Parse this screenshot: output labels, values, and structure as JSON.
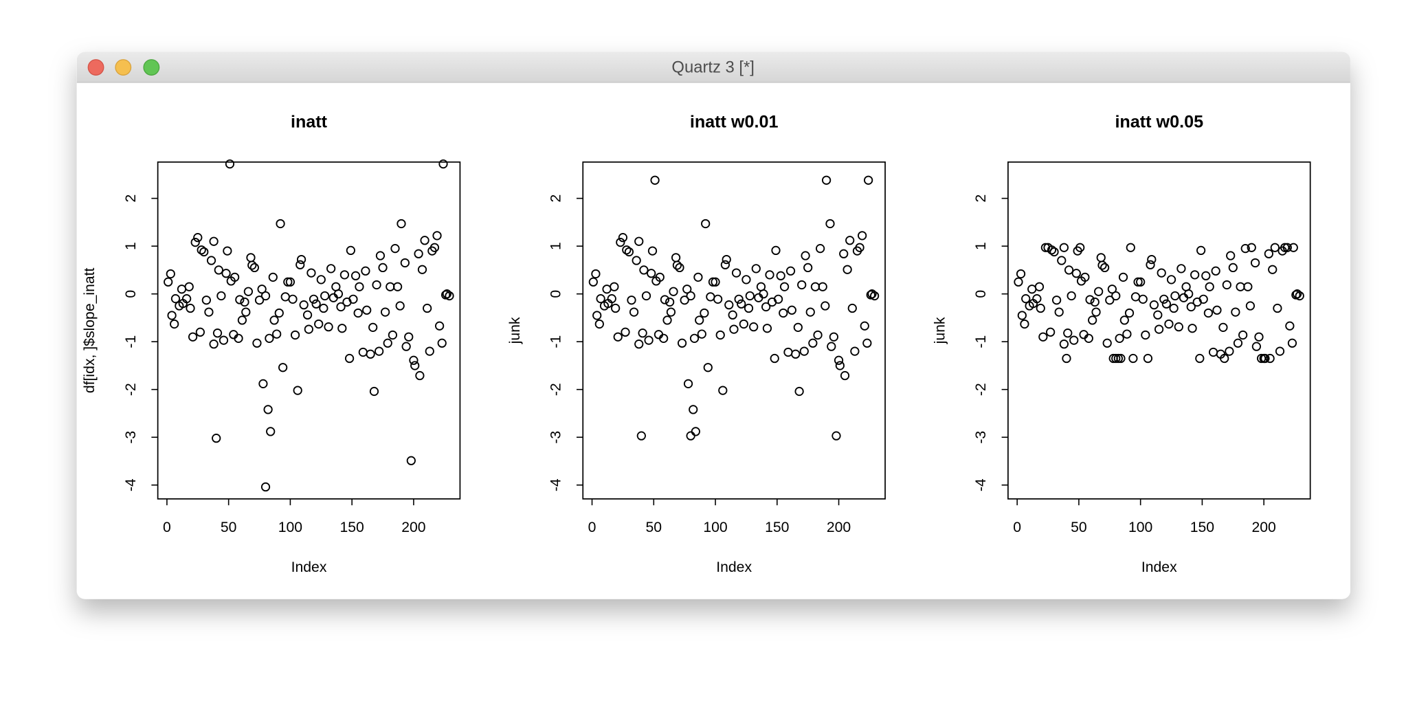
{
  "window": {
    "title": "Quartz 3 [*]"
  },
  "chart_data": [
    {
      "type": "scatter",
      "title": "inatt",
      "xlabel": "Index",
      "ylabel": "df[idx, ]$slope_inatt",
      "color": "#000000",
      "xlim": [
        -7.4,
        237.6
      ],
      "ylim": [
        -4.29,
        2.76
      ],
      "xticks": [
        0,
        50,
        100,
        150,
        200
      ],
      "yticks": [
        -4,
        -3,
        -2,
        -1,
        0,
        1,
        2
      ],
      "x": [
        1,
        3,
        4,
        6,
        7,
        10,
        12,
        13,
        16,
        18,
        19,
        21,
        23,
        25,
        27,
        28,
        30,
        32,
        34,
        36,
        38,
        38,
        40,
        41,
        42,
        44,
        46,
        48,
        49,
        51,
        52,
        54,
        55,
        58,
        59,
        61,
        63,
        64,
        66,
        68,
        69,
        71,
        73,
        75,
        77,
        78,
        80,
        80,
        82,
        83,
        84,
        86,
        87,
        89,
        91,
        92,
        94,
        96,
        98,
        100,
        102,
        104,
        106,
        108,
        109,
        111,
        114,
        115,
        117,
        119,
        121,
        123,
        125,
        127,
        128,
        131,
        133,
        135,
        137,
        139,
        141,
        142,
        144,
        146,
        148,
        149,
        151,
        153,
        155,
        156,
        159,
        161,
        162,
        165,
        167,
        168,
        170,
        172,
        173,
        175,
        177,
        179,
        181,
        183,
        185,
        187,
        189,
        190,
        193,
        194,
        196,
        198,
        200,
        201,
        204,
        205,
        207,
        209,
        211,
        213,
        215,
        217,
        219,
        221,
        223,
        224,
        226,
        227,
        229
      ],
      "values": [
        0.25,
        0.42,
        -0.45,
        -0.63,
        -0.1,
        -0.25,
        0.1,
        -0.2,
        -0.1,
        0.15,
        -0.3,
        -0.9,
        1.08,
        1.18,
        -0.8,
        0.92,
        0.88,
        -0.13,
        -0.38,
        0.7,
        1.1,
        -1.05,
        -3.02,
        -0.82,
        0.5,
        -0.04,
        -0.97,
        0.43,
        0.9,
        2.72,
        0.27,
        -0.85,
        0.35,
        -0.93,
        -0.12,
        -0.55,
        -0.17,
        -0.38,
        0.05,
        0.76,
        0.6,
        0.55,
        -1.03,
        -0.13,
        0.1,
        -1.88,
        -0.04,
        -4.04,
        -2.42,
        -0.93,
        -2.88,
        0.35,
        -0.55,
        -0.84,
        -0.4,
        1.47,
        -1.54,
        -0.06,
        0.25,
        0.25,
        -0.11,
        -0.86,
        -2.02,
        0.61,
        0.72,
        -0.23,
        -0.44,
        -0.74,
        0.44,
        -0.11,
        -0.21,
        -0.63,
        0.3,
        -0.3,
        -0.04,
        -0.69,
        0.53,
        -0.08,
        0.15,
        0,
        -0.27,
        -0.72,
        0.4,
        -0.17,
        -1.35,
        0.91,
        -0.11,
        0.38,
        -0.4,
        0.15,
        -1.22,
        0.48,
        -0.34,
        -1.26,
        -0.7,
        -2.04,
        0.19,
        -1.2,
        0.8,
        0.55,
        -0.38,
        -1.03,
        0.15,
        -0.86,
        0.95,
        0.15,
        -0.25,
        1.47,
        0.65,
        -1.1,
        -0.9,
        -3.49,
        -1.39,
        -1.5,
        0.84,
        -1.71,
        0.51,
        1.12,
        -0.3,
        -1.2,
        0.9,
        0.97,
        1.22,
        -0.67,
        -1.03,
        2.72,
        -0.02,
        0,
        -0.04
      ]
    },
    {
      "type": "scatter",
      "title": "inatt w0.01",
      "xlabel": "Index",
      "ylabel": "junk",
      "color": "#000000",
      "xlim": [
        -7.4,
        237.6
      ],
      "ylim": [
        -4.29,
        2.76
      ],
      "xticks": [
        0,
        50,
        100,
        150,
        200
      ],
      "yticks": [
        -4,
        -3,
        -2,
        -1,
        0,
        1,
        2
      ],
      "x": [
        1,
        3,
        4,
        6,
        7,
        10,
        12,
        13,
        16,
        18,
        19,
        21,
        23,
        25,
        27,
        28,
        30,
        32,
        34,
        36,
        38,
        38,
        40,
        41,
        42,
        44,
        46,
        48,
        49,
        51,
        52,
        54,
        55,
        58,
        59,
        61,
        63,
        64,
        66,
        68,
        69,
        71,
        73,
        75,
        77,
        78,
        80,
        80,
        82,
        83,
        84,
        86,
        87,
        89,
        91,
        92,
        94,
        96,
        98,
        100,
        102,
        104,
        106,
        108,
        109,
        111,
        114,
        115,
        117,
        119,
        121,
        123,
        125,
        127,
        128,
        131,
        133,
        135,
        137,
        139,
        141,
        142,
        144,
        146,
        148,
        149,
        151,
        153,
        155,
        156,
        159,
        161,
        162,
        165,
        167,
        168,
        170,
        172,
        173,
        175,
        177,
        179,
        181,
        183,
        185,
        187,
        189,
        190,
        193,
        194,
        196,
        198,
        200,
        201,
        204,
        205,
        207,
        209,
        211,
        213,
        215,
        217,
        219,
        221,
        223,
        224,
        226,
        227,
        229
      ],
      "values": [
        0.25,
        0.42,
        -0.45,
        -0.63,
        -0.1,
        -0.25,
        0.1,
        -0.2,
        -0.1,
        0.15,
        -0.3,
        -0.9,
        1.08,
        1.18,
        -0.8,
        0.92,
        0.88,
        -0.13,
        -0.38,
        0.7,
        1.1,
        -1.05,
        -2.97,
        -0.82,
        0.5,
        -0.04,
        -0.97,
        0.43,
        0.9,
        2.38,
        0.27,
        -0.85,
        0.35,
        -0.93,
        -0.12,
        -0.55,
        -0.17,
        -0.38,
        0.05,
        0.76,
        0.6,
        0.55,
        -1.03,
        -0.13,
        0.1,
        -1.88,
        -0.04,
        -2.97,
        -2.42,
        -0.93,
        -2.88,
        0.35,
        -0.55,
        -0.84,
        -0.4,
        1.47,
        -1.54,
        -0.06,
        0.25,
        0.25,
        -0.11,
        -0.86,
        -2.02,
        0.61,
        0.72,
        -0.23,
        -0.44,
        -0.74,
        0.44,
        -0.11,
        -0.21,
        -0.63,
        0.3,
        -0.3,
        -0.04,
        -0.69,
        0.53,
        -0.08,
        0.15,
        0,
        -0.27,
        -0.72,
        0.4,
        -0.17,
        -1.35,
        0.91,
        -0.11,
        0.38,
        -0.4,
        0.15,
        -1.22,
        0.48,
        -0.34,
        -1.26,
        -0.7,
        -2.04,
        0.19,
        -1.2,
        0.8,
        0.55,
        -0.38,
        -1.03,
        0.15,
        -0.86,
        0.95,
        0.15,
        -0.25,
        2.38,
        1.47,
        -1.1,
        -0.9,
        -2.97,
        -1.39,
        -1.5,
        0.84,
        -1.71,
        0.51,
        1.12,
        -0.3,
        -1.2,
        0.9,
        0.97,
        1.22,
        -0.67,
        -1.03,
        2.38,
        -0.02,
        0,
        -0.04
      ]
    },
    {
      "type": "scatter",
      "title": "inatt w0.05",
      "xlabel": "Index",
      "ylabel": "junk",
      "color": "#000000",
      "xlim": [
        -7.4,
        237.6
      ],
      "ylim": [
        -4.29,
        2.76
      ],
      "xticks": [
        0,
        50,
        100,
        150,
        200
      ],
      "yticks": [
        -4,
        -3,
        -2,
        -1,
        0,
        1,
        2
      ],
      "x": [
        1,
        3,
        4,
        6,
        7,
        10,
        12,
        13,
        16,
        18,
        19,
        21,
        23,
        25,
        27,
        28,
        30,
        32,
        34,
        36,
        38,
        38,
        40,
        41,
        42,
        44,
        46,
        48,
        49,
        51,
        52,
        54,
        55,
        58,
        59,
        61,
        63,
        64,
        66,
        68,
        69,
        71,
        73,
        75,
        77,
        78,
        80,
        80,
        82,
        83,
        84,
        86,
        87,
        89,
        91,
        92,
        94,
        96,
        98,
        100,
        102,
        104,
        106,
        108,
        109,
        111,
        114,
        115,
        117,
        119,
        121,
        123,
        125,
        127,
        128,
        131,
        133,
        135,
        137,
        139,
        141,
        142,
        144,
        146,
        148,
        149,
        151,
        153,
        155,
        156,
        159,
        161,
        162,
        165,
        167,
        168,
        170,
        172,
        173,
        175,
        177,
        179,
        181,
        183,
        185,
        187,
        189,
        190,
        193,
        194,
        196,
        198,
        200,
        201,
        204,
        205,
        207,
        209,
        211,
        213,
        215,
        217,
        219,
        221,
        223,
        224,
        226,
        227,
        229
      ],
      "values": [
        0.25,
        0.42,
        -0.45,
        -0.63,
        -0.1,
        -0.25,
        0.1,
        -0.2,
        -0.1,
        0.15,
        -0.3,
        -0.9,
        0.97,
        0.97,
        -0.8,
        0.92,
        0.88,
        -0.13,
        -0.38,
        0.7,
        0.97,
        -1.05,
        -1.35,
        -0.82,
        0.5,
        -0.04,
        -0.97,
        0.43,
        0.9,
        0.97,
        0.27,
        -0.85,
        0.35,
        -0.93,
        -0.12,
        -0.55,
        -0.17,
        -0.38,
        0.05,
        0.76,
        0.6,
        0.55,
        -1.03,
        -0.13,
        0.1,
        -1.35,
        -0.04,
        -1.35,
        -1.35,
        -0.93,
        -1.35,
        0.35,
        -0.55,
        -0.84,
        -0.4,
        0.97,
        -1.35,
        -0.06,
        0.25,
        0.25,
        -0.11,
        -0.86,
        -1.35,
        0.61,
        0.72,
        -0.23,
        -0.44,
        -0.74,
        0.44,
        -0.11,
        -0.21,
        -0.63,
        0.3,
        -0.3,
        -0.04,
        -0.69,
        0.53,
        -0.08,
        0.15,
        0,
        -0.27,
        -0.72,
        0.4,
        -0.17,
        -1.35,
        0.91,
        -0.11,
        0.38,
        -0.4,
        0.15,
        -1.22,
        0.48,
        -0.34,
        -1.26,
        -0.7,
        -1.35,
        0.19,
        -1.2,
        0.8,
        0.55,
        -0.38,
        -1.03,
        0.15,
        -0.86,
        0.95,
        0.15,
        -0.25,
        0.97,
        0.65,
        -1.1,
        -0.9,
        -1.35,
        -1.35,
        -1.35,
        0.84,
        -1.35,
        0.51,
        0.97,
        -0.3,
        -1.2,
        0.9,
        0.97,
        0.97,
        -0.67,
        -1.03,
        0.97,
        -0.02,
        0,
        -0.04
      ]
    }
  ]
}
